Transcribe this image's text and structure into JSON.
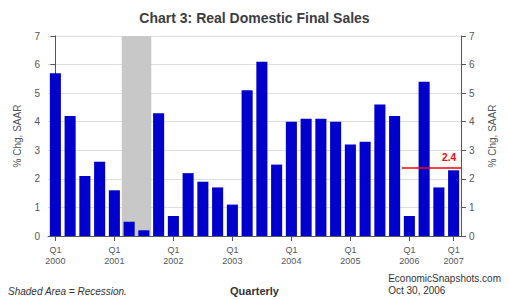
{
  "chart_data": {
    "type": "bar",
    "title": "Chart 3: Real Domestic Final Sales",
    "categories": [
      "Q1\n2000",
      null,
      null,
      null,
      "Q1\n2001",
      null,
      null,
      null,
      "Q1\n2002",
      null,
      null,
      null,
      "Q1\n2003",
      null,
      null,
      null,
      "Q1\n2004",
      null,
      null,
      null,
      "Q1\n2005",
      null,
      null,
      null,
      "Q1\n2006",
      null,
      null,
      "Q1\n2007"
    ],
    "values": [
      5.7,
      4.2,
      2.1,
      2.6,
      1.6,
      0.5,
      0.2,
      4.3,
      0.7,
      2.2,
      1.9,
      1.7,
      1.1,
      5.1,
      6.1,
      2.5,
      4.0,
      4.1,
      4.1,
      4.0,
      3.2,
      3.3,
      4.6,
      4.2,
      0.7,
      5.4,
      1.7,
      2.3
    ],
    "color": "#0000cc",
    "xlabel": "Quarterly",
    "ylabel": "% Chg, SAAR",
    "y2label": "% Chg, SAAR",
    "ylim": [
      0,
      7
    ],
    "yticks": [
      0,
      1,
      2,
      3,
      4,
      5,
      6,
      7
    ],
    "y2lim": [
      0,
      7
    ],
    "y2ticks": [
      0,
      1,
      2,
      3,
      4,
      5,
      6,
      7
    ],
    "grid": true,
    "shaded": {
      "from_index": 5,
      "to_index": 6,
      "color": "#c8c8c8"
    },
    "reference_line": {
      "value": 2.4,
      "label": "2.4",
      "color": "red",
      "from_index": 24,
      "to_index": 27
    },
    "footnotes": [
      "Shaded Area = Recession.",
      "EconomicSnapshots.com\nOct 30, 2006"
    ]
  }
}
